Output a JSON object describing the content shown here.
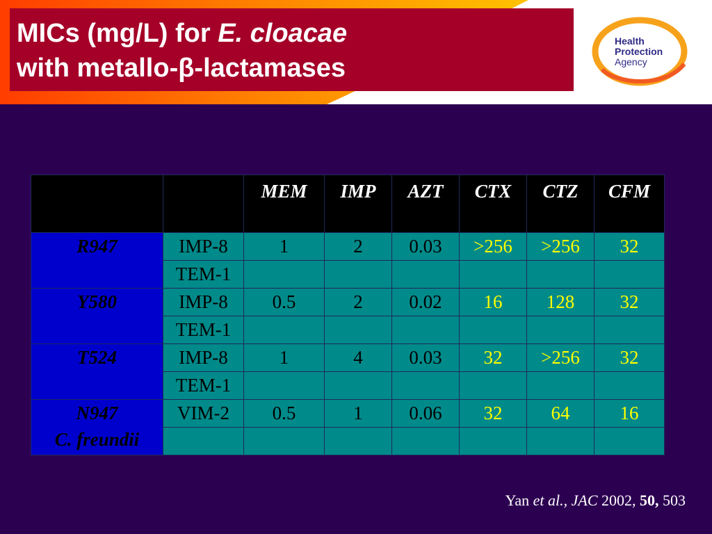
{
  "slide": {
    "title_line1_prefix": "MICs (mg/L) for ",
    "title_line1_italic": "E. cloacae",
    "title_line2": "with metallo-β-lactamases"
  },
  "logo": {
    "line1": "Health",
    "line2": "Protection",
    "line3": "Agency",
    "ring_color": "#f7a21b",
    "text_color": "#2f2a86"
  },
  "colors": {
    "background": "#2c0051",
    "title_box": "#a50028",
    "table_cell": "#008a8a",
    "strain_cell": "#0000cd",
    "highlight_text": "#ffff00"
  },
  "table": {
    "headers": [
      "",
      "",
      "MEM",
      "IMP",
      "AZT",
      "CTX",
      "CTZ",
      "CFM"
    ],
    "strains": [
      {
        "name": "R947",
        "subname": "",
        "rows": [
          {
            "enzyme": "IMP-8",
            "values": [
              "1",
              "2",
              "0.03",
              ">256",
              ">256",
              "32"
            ]
          },
          {
            "enzyme": "TEM-1",
            "values": [
              "",
              "",
              "",
              "",
              "",
              ""
            ]
          }
        ]
      },
      {
        "name": "Y580",
        "subname": "",
        "rows": [
          {
            "enzyme": "IMP-8",
            "values": [
              "0.5",
              "2",
              "0.02",
              "16",
              "128",
              "32"
            ]
          },
          {
            "enzyme": "TEM-1",
            "values": [
              "",
              "",
              "",
              "",
              "",
              ""
            ]
          }
        ]
      },
      {
        "name": "T524",
        "subname": "",
        "rows": [
          {
            "enzyme": "IMP-8",
            "values": [
              "1",
              "4",
              "0.03",
              "32",
              ">256",
              "32"
            ]
          },
          {
            "enzyme": "TEM-1",
            "values": [
              "",
              "",
              "",
              "",
              "",
              ""
            ]
          }
        ]
      },
      {
        "name": "N947",
        "subname": "C. freundii",
        "rows": [
          {
            "enzyme": "VIM-2",
            "values": [
              "0.5",
              "1",
              "0.06",
              "32",
              "64",
              "16"
            ]
          },
          {
            "enzyme": "",
            "values": [
              "",
              "",
              "",
              "",
              "",
              ""
            ]
          }
        ]
      }
    ]
  },
  "citation": {
    "author": "Yan ",
    "etal": "et al.,",
    "journal": " JAC",
    "year": " 2002, ",
    "volume": "50,",
    "pages": " 503"
  }
}
